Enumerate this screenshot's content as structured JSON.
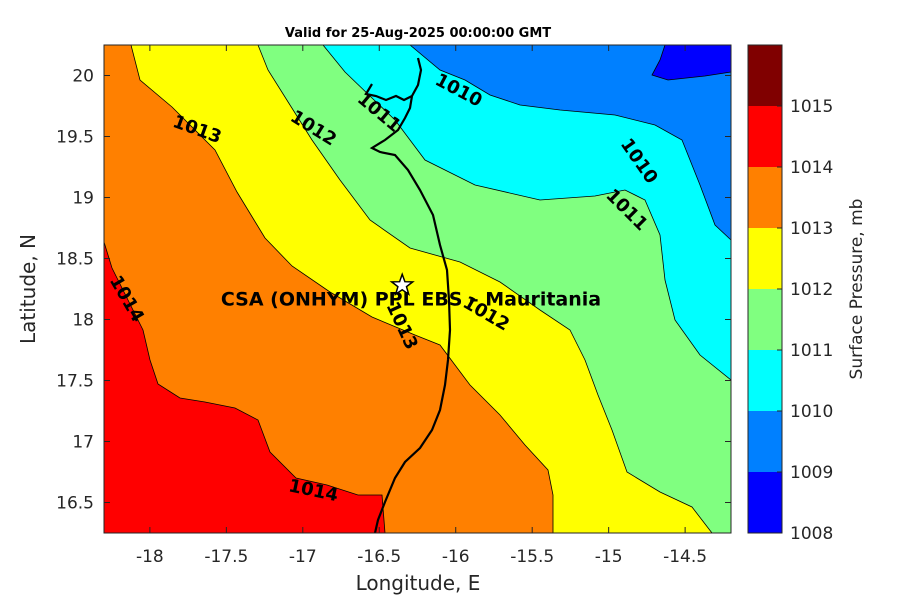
{
  "chart_data": {
    "type": "contour_map",
    "title": "Valid for 25-Aug-2025 00:00:00 GMT",
    "xlabel": "Longitude, E",
    "ylabel": "Latitude, N",
    "xlim": [
      -18.3,
      -14.2
    ],
    "ylim": [
      16.25,
      20.25
    ],
    "x_ticks": [
      -18,
      -17.5,
      -17,
      -16.5,
      -16,
      -15.5,
      -15,
      -14.5
    ],
    "x_tick_labels": [
      "-18",
      "-17.5",
      "-17",
      "-16.5",
      "-16",
      "-15.5",
      "-15",
      "-14.5"
    ],
    "y_ticks": [
      16.5,
      17,
      17.5,
      18,
      18.5,
      19,
      19.5,
      20
    ],
    "y_tick_labels": [
      "16.5",
      "17",
      "17.5",
      "18",
      "18.5",
      "19",
      "19.5",
      "20"
    ],
    "colorbar": {
      "label": "Surface Pressure, mb",
      "levels": [
        1008,
        1009,
        1010,
        1011,
        1012,
        1013,
        1014,
        1015
      ],
      "level_labels": [
        "1008",
        "1009",
        "1010",
        "1011",
        "1012",
        "1013",
        "1014",
        "1015"
      ],
      "colors": [
        "#0000ff",
        "#0080ff",
        "#00ffff",
        "#80ff80",
        "#ffff00",
        "#ff8000",
        "#ff0000",
        "#800000"
      ]
    },
    "contour_labels": [
      {
        "text": "1010",
        "lon": -15.98,
        "lat": 19.88
      },
      {
        "text": "1010",
        "lon": -14.8,
        "lat": 19.3
      },
      {
        "text": "1011",
        "lon": -16.5,
        "lat": 19.7
      },
      {
        "text": "1011",
        "lon": -14.88,
        "lat": 18.9
      },
      {
        "text": "1012",
        "lon": -16.93,
        "lat": 19.57
      },
      {
        "text": "1012",
        "lon": -15.8,
        "lat": 18.05
      },
      {
        "text": "1013",
        "lon": -17.69,
        "lat": 19.56
      },
      {
        "text": "1013",
        "lon": -16.35,
        "lat": 17.95
      },
      {
        "text": "1014",
        "lon": -18.15,
        "lat": 18.17
      },
      {
        "text": "1014",
        "lon": -16.93,
        "lat": 16.6
      }
    ],
    "site": {
      "label": "CSA (ONHYM) PPL EBS  – Mauritania",
      "lon": -16.35,
      "lat": 18.28,
      "marker": "star"
    },
    "boundary_line": "coastline"
  }
}
